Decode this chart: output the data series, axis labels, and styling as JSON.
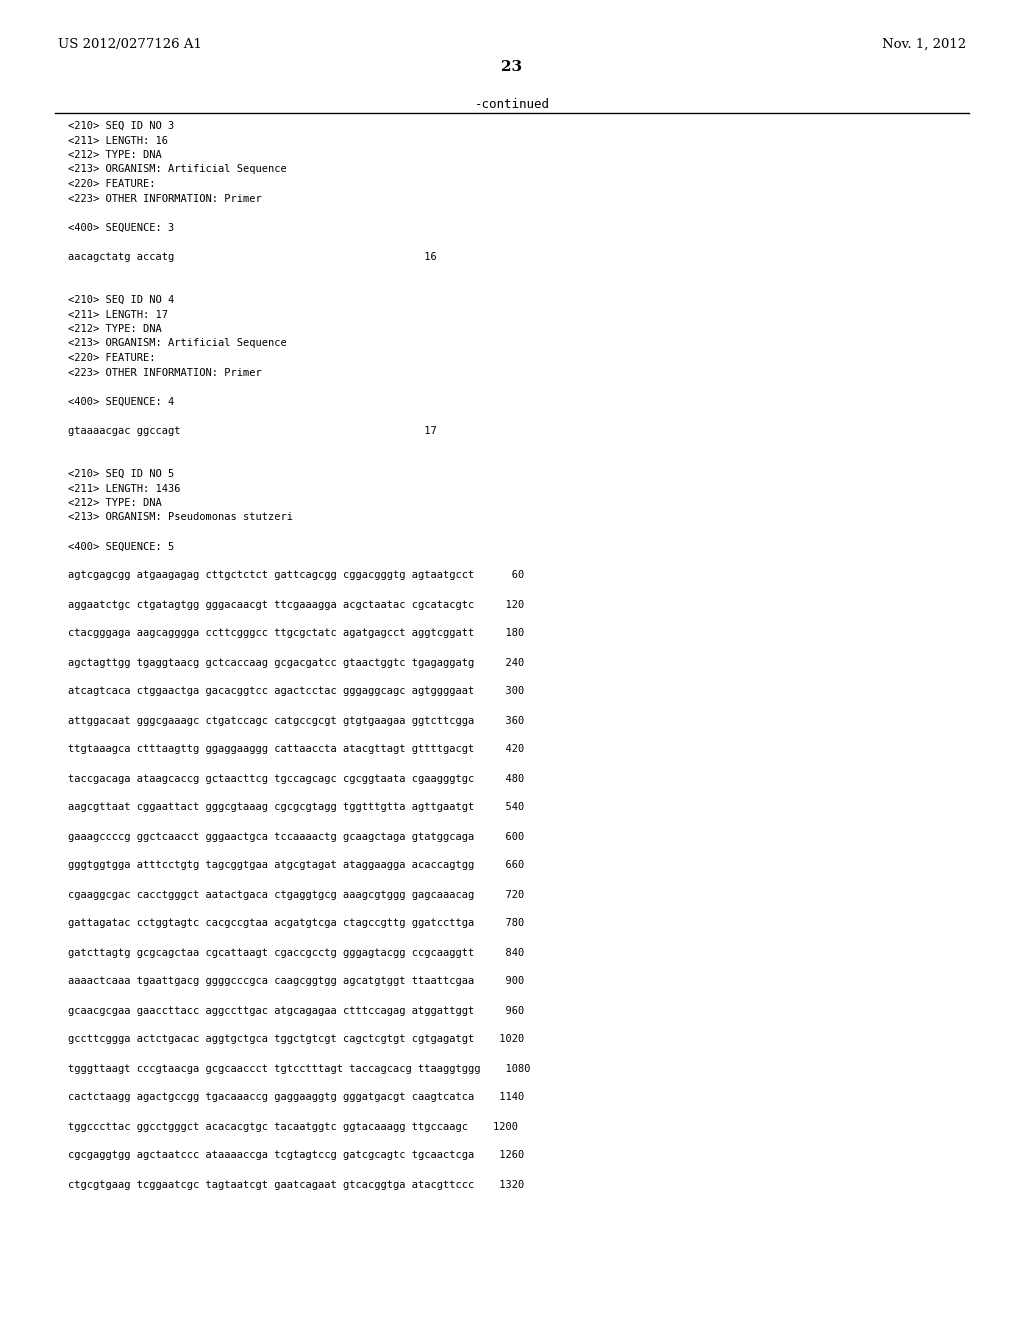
{
  "header_left": "US 2012/0277126 A1",
  "header_right": "Nov. 1, 2012",
  "page_number": "23",
  "continued_text": "-continued",
  "background_color": "#ffffff",
  "text_color": "#000000",
  "monospace_lines": [
    "<210> SEQ ID NO 3",
    "<211> LENGTH: 16",
    "<212> TYPE: DNA",
    "<213> ORGANISM: Artificial Sequence",
    "<220> FEATURE:",
    "<223> OTHER INFORMATION: Primer",
    "",
    "<400> SEQUENCE: 3",
    "",
    "aacagctatg accatg                                        16",
    "",
    "",
    "<210> SEQ ID NO 4",
    "<211> LENGTH: 17",
    "<212> TYPE: DNA",
    "<213> ORGANISM: Artificial Sequence",
    "<220> FEATURE:",
    "<223> OTHER INFORMATION: Primer",
    "",
    "<400> SEQUENCE: 4",
    "",
    "gtaaaacgac ggccagt                                       17",
    "",
    "",
    "<210> SEQ ID NO 5",
    "<211> LENGTH: 1436",
    "<212> TYPE: DNA",
    "<213> ORGANISM: Pseudomonas stutzeri",
    "",
    "<400> SEQUENCE: 5",
    "",
    "agtcgagcgg atgaagagag cttgctctct gattcagcgg cggacgggtg agtaatgcct      60",
    "",
    "aggaatctgc ctgatagtgg gggacaacgt ttcgaaagga acgctaatac cgcatacgtc     120",
    "",
    "ctacgggaga aagcagggga ccttcgggcc ttgcgctatc agatgagcct aggtcggatt     180",
    "",
    "agctagttgg tgaggtaacg gctcaccaag gcgacgatcc gtaactggtc tgagaggatg     240",
    "",
    "atcagtcaca ctggaactga gacacggtcc agactcctac gggaggcagc agtggggaat     300",
    "",
    "attggacaat gggcgaaagc ctgatccagc catgccgcgt gtgtgaagaa ggtcttcgga     360",
    "",
    "ttgtaaagca ctttaagttg ggaggaaggg cattaaccta atacgttagt gttttgacgt     420",
    "",
    "taccgacaga ataagcaccg gctaacttcg tgccagcagc cgcggtaata cgaagggtgc     480",
    "",
    "aagcgttaat cggaattact gggcgtaaag cgcgcgtagg tggtttgtta agttgaatgt     540",
    "",
    "gaaagccccg ggctcaacct gggaactgca tccaaaactg gcaagctaga gtatggcaga     600",
    "",
    "gggtggtgga atttcctgtg tagcggtgaa atgcgtagat ataggaagga acaccagtgg     660",
    "",
    "cgaaggcgac cacctgggct aatactgaca ctgaggtgcg aaagcgtggg gagcaaacag     720",
    "",
    "gattagatac cctggtagtc cacgccgtaa acgatgtcga ctagccgttg ggatccttga     780",
    "",
    "gatcttagtg gcgcagctaa cgcattaagt cgaccgcctg gggagtacgg ccgcaaggtt     840",
    "",
    "aaaactcaaa tgaattgacg ggggcccgca caagcggtgg agcatgtggt ttaattcgaa     900",
    "",
    "gcaacgcgaa gaaccttacc aggccttgac atgcagagaa ctttccagag atggattggt     960",
    "",
    "gccttcggga actctgacac aggtgctgca tggctgtcgt cagctcgtgt cgtgagatgt    1020",
    "",
    "tgggttaagt cccgtaacga gcgcaaccct tgtcctttagt taccagcacg ttaaggtggg    1080",
    "",
    "cactctaagg agactgccgg tgacaaaccg gaggaaggtg gggatgacgt caagtcatca    1140",
    "",
    "tggcccttac ggcctgggct acacacgtgc tacaatggtc ggtacaaagg ttgccaagc    1200",
    "",
    "cgcgaggtgg agctaatccc ataaaaccga tcgtagtccg gatcgcagtc tgcaactcga    1260",
    "",
    "ctgcgtgaag tcggaatcgc tagtaatcgt gaatcagaat gtcacggtga atacgttccc    1320"
  ]
}
